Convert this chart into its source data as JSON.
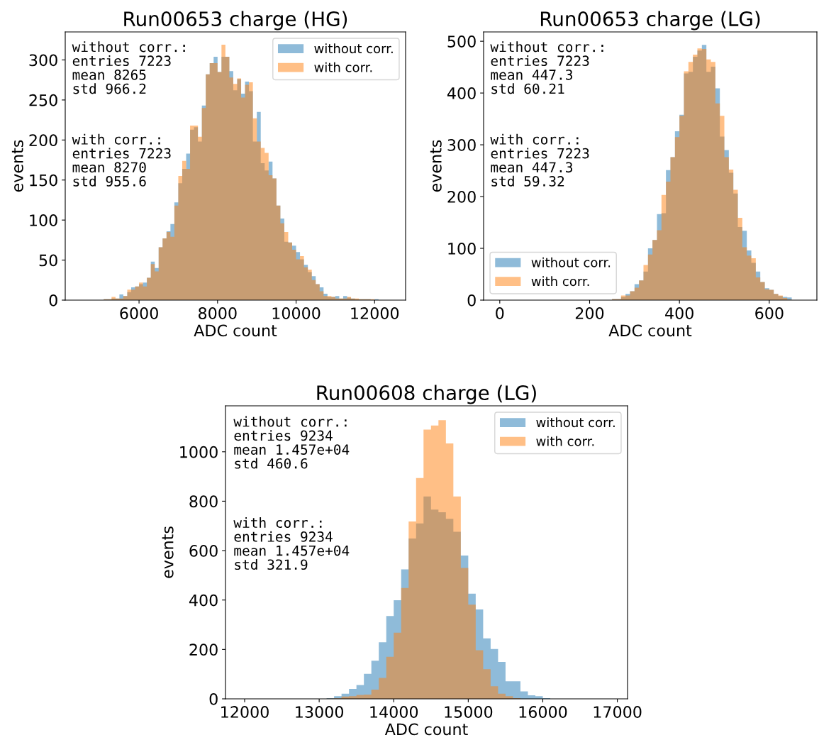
{
  "chart_data": [
    {
      "type": "histogram",
      "title": "Run00653 charge (HG)",
      "xlabel": "ADC count",
      "ylabel": "events",
      "legend": "top right",
      "grid": false,
      "bins": [
        5100,
        5200,
        5300,
        5400,
        5500,
        5600,
        5700,
        5800,
        5900,
        6000,
        6100,
        6200,
        6300,
        6400,
        6500,
        6600,
        6700,
        6800,
        6900,
        7000,
        7100,
        7200,
        7300,
        7400,
        7500,
        7600,
        7700,
        7800,
        7900,
        8000,
        8100,
        8200,
        8300,
        8400,
        8500,
        8600,
        8700,
        8800,
        8900,
        9000,
        9100,
        9200,
        9300,
        9400,
        9500,
        9600,
        9700,
        9800,
        9900,
        10000,
        10100,
        10200,
        10300,
        10400,
        10500,
        10600,
        10700,
        10800,
        10900,
        11000,
        11100,
        11200,
        11300,
        11400,
        11500,
        11600,
        11700,
        11800,
        11900,
        12000,
        12100
      ],
      "series": [
        {
          "name": "without corr.",
          "color": "#1f77b4",
          "values": [
            1,
            1,
            2,
            2,
            7,
            5,
            10,
            16,
            17,
            20,
            22,
            28,
            48,
            40,
            66,
            77,
            86,
            95,
            122,
            146,
            164,
            183,
            213,
            216,
            198,
            243,
            282,
            296,
            304,
            285,
            304,
            304,
            286,
            262,
            276,
            258,
            273,
            261,
            198,
            235,
            171,
            162,
            173,
            152,
            118,
            102,
            73,
            72,
            68,
            60,
            51,
            44,
            35,
            30,
            20,
            16,
            8,
            4,
            4,
            5,
            2,
            5,
            3,
            2,
            1,
            1,
            1,
            1,
            0,
            1
          ]
        },
        {
          "name": "with corr.",
          "color": "#ff7f0e",
          "values": [
            1,
            1,
            4,
            2,
            2,
            5,
            13,
            13,
            17,
            22,
            17,
            28,
            45,
            36,
            66,
            77,
            85,
            79,
            118,
            155,
            174,
            164,
            218,
            218,
            204,
            240,
            282,
            296,
            296,
            285,
            319,
            304,
            278,
            270,
            277,
            253,
            269,
            272,
            227,
            198,
            190,
            184,
            156,
            152,
            118,
            96,
            85,
            72,
            63,
            51,
            55,
            41,
            38,
            25,
            20,
            11,
            5,
            5,
            4,
            2,
            2,
            2,
            4,
            2,
            2,
            1,
            1,
            1,
            1,
            0
          ]
        }
      ],
      "xlim": [
        4120,
        12790
      ],
      "ylim": [
        0,
        335
      ],
      "xticks": [
        6000,
        8000,
        10000,
        12000
      ],
      "yticks": [
        0,
        50,
        100,
        150,
        200,
        250,
        300
      ],
      "annotations": [
        "without corr.:\nentries 7223\nmean 8265\nstd 966.2",
        "with corr.:\nentries 7223\nmean 8270\nstd 955.6"
      ]
    },
    {
      "type": "histogram",
      "title": "Run00653 charge (LG)",
      "xlabel": "ADC count",
      "ylabel": "events",
      "legend": "bottom left",
      "grid": false,
      "bins": [
        250,
        260,
        270,
        280,
        290,
        300,
        310,
        320,
        330,
        340,
        350,
        360,
        370,
        380,
        390,
        400,
        410,
        420,
        430,
        440,
        450,
        460,
        470,
        480,
        490,
        500,
        510,
        520,
        530,
        540,
        550,
        560,
        570,
        580,
        590,
        600,
        610,
        620,
        630,
        640,
        650
      ],
      "series": [
        {
          "name": "without corr.",
          "color": "#1f77b4",
          "values": [
            2,
            2,
            6,
            12,
            17,
            31,
            38,
            55,
            100,
            116,
            166,
            168,
            251,
            276,
            326,
            358,
            438,
            441,
            470,
            482,
            493,
            441,
            451,
            409,
            316,
            290,
            246,
            206,
            141,
            134,
            96,
            72,
            55,
            35,
            23,
            20,
            12,
            8,
            6,
            5
          ]
        },
        {
          "name": "with corr.",
          "color": "#ff7f0e",
          "values": [
            2,
            2,
            9,
            9,
            17,
            24,
            38,
            68,
            88,
            116,
            135,
            203,
            229,
            276,
            315,
            356,
            442,
            460,
            474,
            486,
            485,
            465,
            460,
            380,
            356,
            276,
            252,
            213,
            159,
            102,
            86,
            81,
            44,
            35,
            21,
            20,
            12,
            9,
            4,
            1
          ]
        }
      ],
      "xlim": [
        -36,
        706
      ],
      "ylim": [
        0,
        518
      ],
      "xticks": [
        0,
        200,
        400,
        600
      ],
      "yticks": [
        0,
        100,
        200,
        300,
        400,
        500
      ],
      "annotations": [
        "without corr.:\nentries 7223\nmean 447.3\nstd 60.21",
        "with corr.:\nentries 7223\nmean 447.3\nstd 59.32"
      ]
    },
    {
      "type": "histogram",
      "title": "Run00608 charge (LG)",
      "xlabel": "ADC count",
      "ylabel": "events",
      "legend": "top right",
      "grid": false,
      "bins": [
        13100,
        13200,
        13300,
        13400,
        13500,
        13600,
        13700,
        13800,
        13900,
        14000,
        14100,
        14200,
        14300,
        14400,
        14500,
        14600,
        14700,
        14800,
        14900,
        15000,
        15100,
        15200,
        15300,
        15400,
        15500,
        15600,
        15700,
        15800,
        15900,
        16000,
        16100
      ],
      "series": [
        {
          "name": "without corr.",
          "color": "#1f77b4",
          "values": [
            3,
            11,
            21,
            40,
            56,
            101,
            154,
            229,
            335,
            399,
            524,
            649,
            710,
            819,
            766,
            755,
            729,
            676,
            580,
            426,
            362,
            245,
            202,
            149,
            71,
            71,
            30,
            14,
            11,
            3
          ]
        },
        {
          "name": "with corr.",
          "color": "#ff7f0e",
          "values": [
            1,
            2,
            9,
            11,
            16,
            17,
            37,
            85,
            170,
            268,
            449,
            718,
            894,
            1090,
            1106,
            1128,
            1034,
            819,
            530,
            381,
            197,
            120,
            51,
            21,
            11,
            3,
            0,
            0,
            0,
            0
          ]
        }
      ],
      "xlim": [
        11743,
        17137
      ],
      "ylim": [
        0,
        1186
      ],
      "xticks": [
        12000,
        13000,
        14000,
        15000,
        16000,
        17000
      ],
      "yticks": [
        0,
        200,
        400,
        600,
        800,
        1000
      ],
      "annotations": [
        "without corr.:\nentries 9234\nmean 1.457e+04\nstd 460.6",
        "with corr.:\nentries 9234\nmean 1.457e+04\nstd 321.9"
      ]
    }
  ]
}
